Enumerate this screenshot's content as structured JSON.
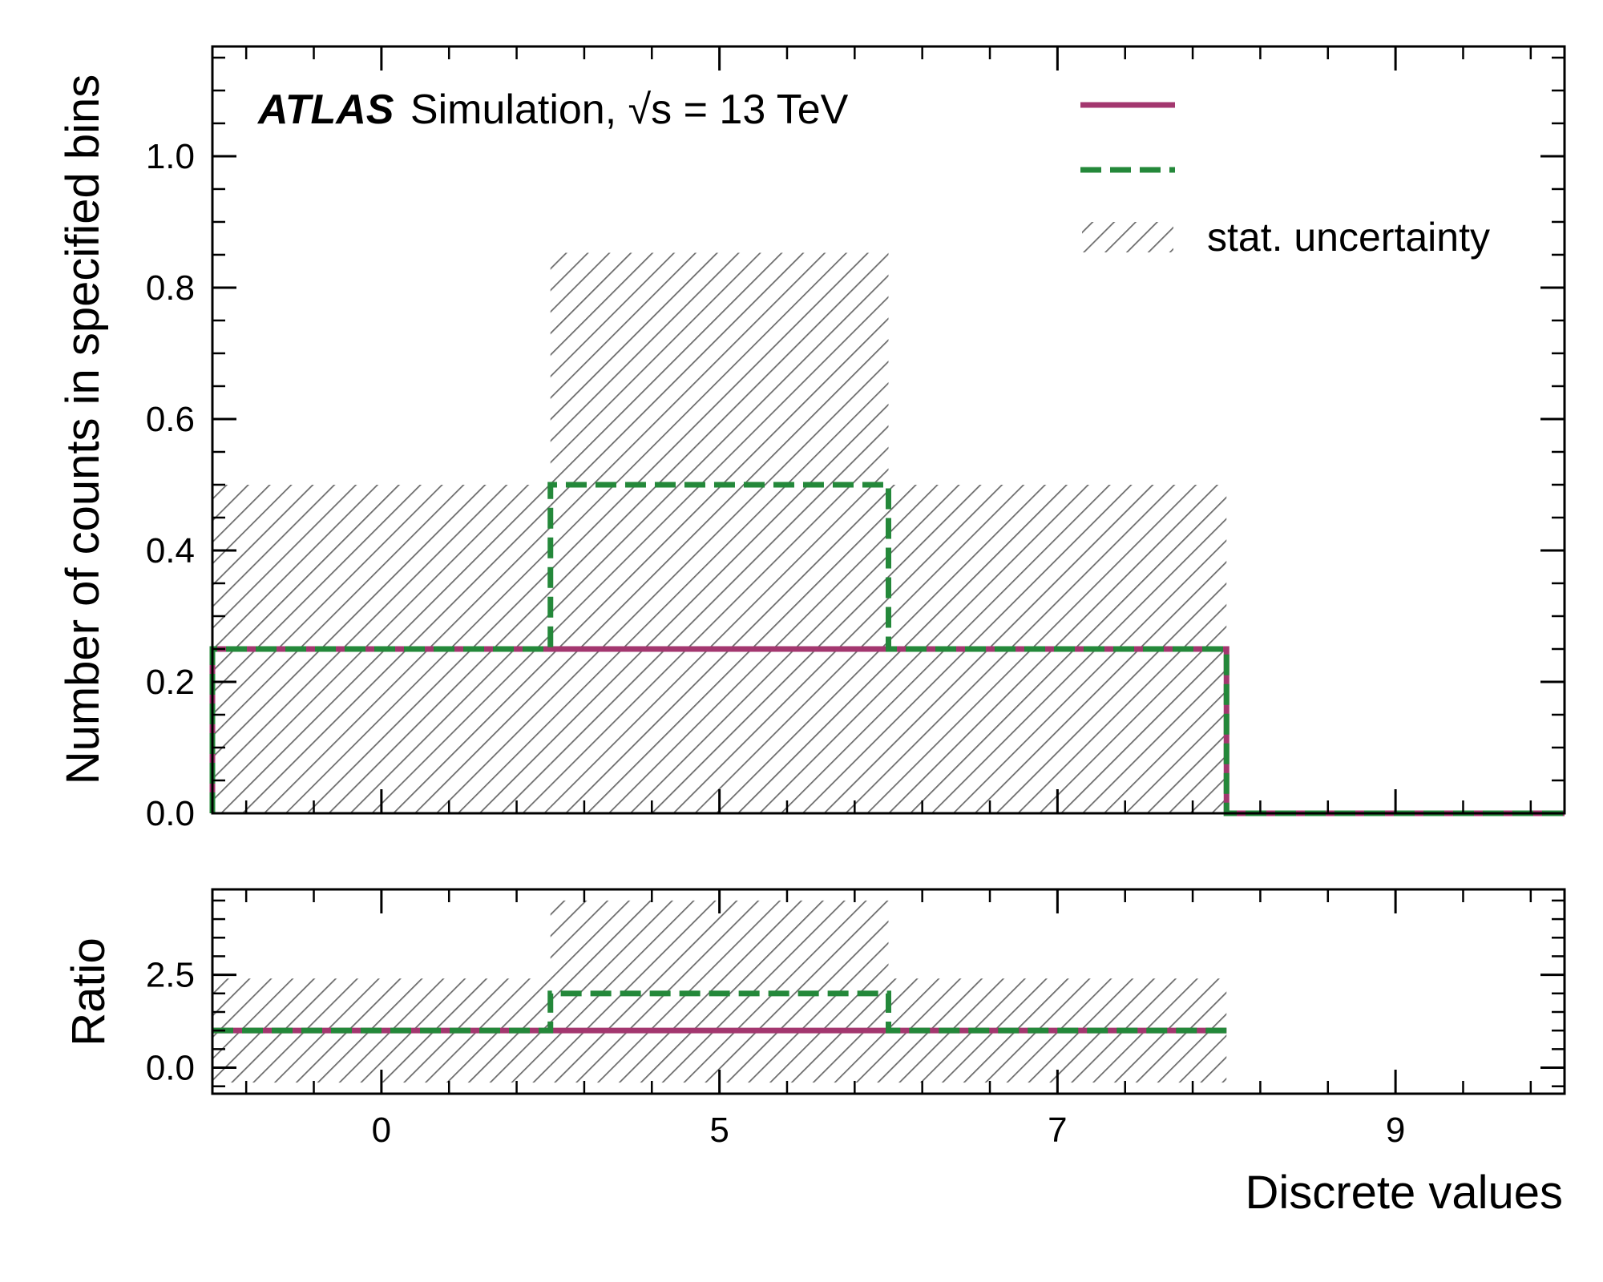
{
  "chart_data": {
    "type": "histogram",
    "experiment_label": "ATLAS",
    "experiment_text": "Simulation, √s = 13 TeV",
    "x_categories": [
      "0",
      "5",
      "7",
      "9"
    ],
    "bins": [
      {
        "low": -0.5,
        "high": 0.5
      },
      {
        "low": 0.5,
        "high": 1.5
      },
      {
        "low": 1.5,
        "high": 2.5
      },
      {
        "low": 2.5,
        "high": 3.5
      }
    ],
    "xlim": [
      -0.5,
      3.5
    ],
    "xlabel": "Discrete values",
    "colors": {
      "solid": "#a3376f",
      "dashed": "#24883a",
      "hatch": "#6b6b6b"
    },
    "main_panel": {
      "ylabel": "Number of counts in specified bins",
      "ylim": [
        0.0,
        1.167
      ],
      "yticks": [
        "0.0",
        "0.2",
        "0.4",
        "0.6",
        "0.8",
        "1.0"
      ],
      "ytick_values": [
        0.0,
        0.2,
        0.4,
        0.6,
        0.8,
        1.0
      ],
      "series": [
        {
          "style": "solid",
          "values": [
            0.25,
            0.25,
            0.25,
            0.0
          ]
        },
        {
          "style": "dashed",
          "values": [
            0.25,
            0.5,
            0.25,
            0.0
          ]
        }
      ],
      "uncertainty": [
        {
          "low": 0.0,
          "high": 0.5
        },
        {
          "low": 0.0,
          "high": 0.853
        },
        {
          "low": 0.0,
          "high": 0.5
        },
        {
          "low": 0.0,
          "high": 0.0
        }
      ]
    },
    "ratio_panel": {
      "ylabel": "Ratio",
      "ylim": [
        -0.7,
        4.8
      ],
      "yticks": [
        "0.0",
        "2.5"
      ],
      "ytick_values": [
        0.0,
        2.5
      ],
      "series": [
        {
          "style": "solid",
          "values": [
            1.0,
            1.0,
            1.0,
            null
          ]
        },
        {
          "style": "dashed",
          "values": [
            1.0,
            2.0,
            1.0,
            null
          ]
        }
      ],
      "uncertainty": [
        {
          "low": -0.4,
          "high": 2.4
        },
        {
          "low": -0.4,
          "high": 4.5
        },
        {
          "low": -0.4,
          "high": 2.4
        },
        null
      ]
    },
    "legend": {
      "position": "top-right",
      "entries": [
        {
          "style": "solid",
          "label": ""
        },
        {
          "style": "dashed",
          "label": ""
        },
        {
          "style": "hatch",
          "label": "stat. uncertainty"
        }
      ]
    }
  }
}
